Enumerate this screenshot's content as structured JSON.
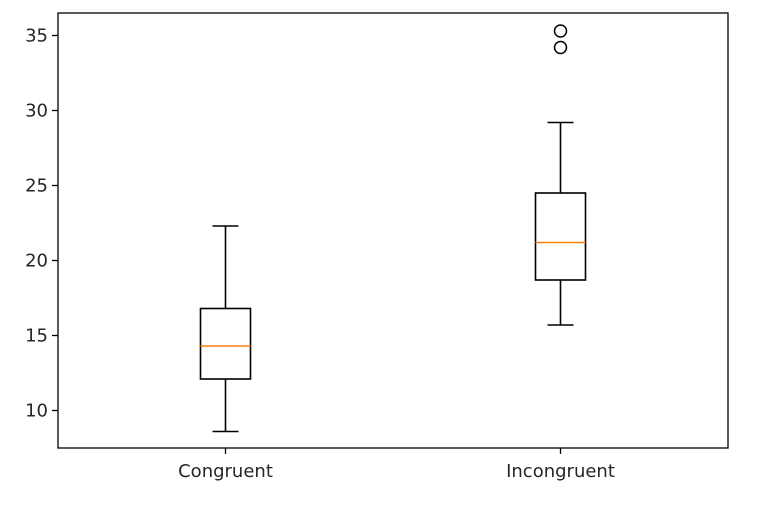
{
  "chart_data": {
    "type": "boxplot",
    "title": "",
    "xlabel": "",
    "ylabel": "",
    "ylim": [
      7.5,
      36.5
    ],
    "yticks": [
      10,
      15,
      20,
      25,
      30,
      35
    ],
    "ytick_labels": [
      "10",
      "15",
      "20",
      "25",
      "30",
      "35"
    ],
    "categories": [
      "Congruent",
      "Incongruent"
    ],
    "boxes": [
      {
        "label": "Congruent",
        "whisker_low": 8.6,
        "q1": 12.1,
        "median": 14.3,
        "q3": 16.8,
        "whisker_high": 22.3,
        "outliers": []
      },
      {
        "label": "Incongruent",
        "whisker_low": 15.7,
        "q1": 18.7,
        "median": 21.2,
        "q3": 24.5,
        "whisker_high": 29.2,
        "outliers": [
          34.2,
          35.3
        ]
      }
    ],
    "colors": {
      "box": "#000000",
      "median": "#ff7f0e",
      "axes": "#000000"
    },
    "grid": false,
    "legend": "none"
  }
}
